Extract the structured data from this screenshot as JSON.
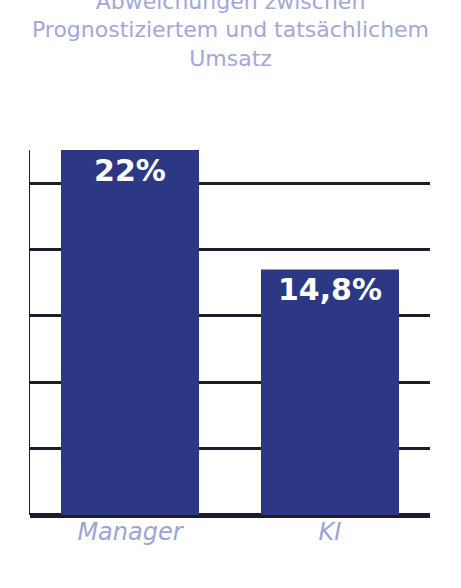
{
  "chart_data": {
    "type": "bar",
    "title": "Abweichungen zwischen Prognostiziertem und tatsächlichem Umsatz",
    "categories": [
      "Manager",
      "KI"
    ],
    "values": [
      22,
      14.8
    ],
    "value_labels": [
      "22%",
      "14,8%"
    ],
    "color": "#2c3883",
    "ylim": [
      0,
      22
    ],
    "yticks": [
      0,
      4,
      8,
      12,
      16,
      20
    ],
    "grid": true,
    "data_labels": true,
    "tick_labels": "x"
  }
}
